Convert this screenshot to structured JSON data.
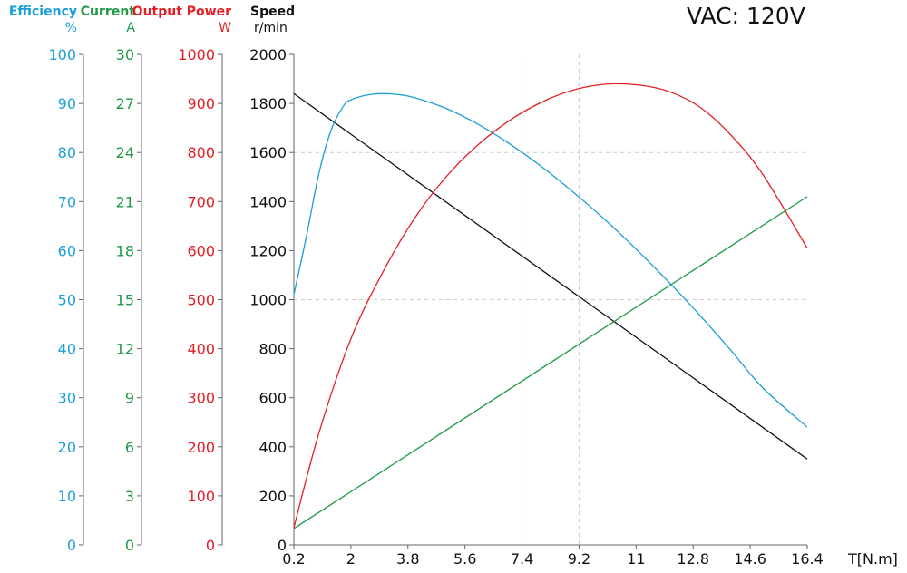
{
  "title": "VAC: 120V",
  "chart_data": {
    "type": "line",
    "title": "VAC: 120V",
    "xlabel": "T[N.m]",
    "xlim": [
      0.2,
      16.4
    ],
    "xticks": [
      "0.2",
      "2",
      "3.8",
      "5.6",
      "7.4",
      "9.2",
      "11",
      "12.8",
      "14.6",
      "16.4"
    ],
    "axes": [
      {
        "key": "eff",
        "label": "Efficiency",
        "unit": "%",
        "color": "#1a9ed8",
        "min": 0,
        "max": 100,
        "ticks": [
          "0",
          "10",
          "20",
          "30",
          "40",
          "50",
          "60",
          "70",
          "80",
          "90",
          "100"
        ]
      },
      {
        "key": "cur",
        "label": "Current",
        "unit": "A",
        "color": "#1d9a46",
        "min": 0,
        "max": 30,
        "ticks": [
          "0",
          "3",
          "6",
          "9",
          "12",
          "15",
          "18",
          "21",
          "24",
          "27",
          "30"
        ]
      },
      {
        "key": "pow",
        "label": "Output Power",
        "unit": "W",
        "color": "#e31e24",
        "min": 0,
        "max": 1000,
        "ticks": [
          "0",
          "100",
          "200",
          "300",
          "400",
          "500",
          "600",
          "700",
          "800",
          "900",
          "1000"
        ]
      },
      {
        "key": "spd",
        "label": "Speed",
        "unit": "r/min",
        "color": "#111111",
        "min": 0,
        "max": 2000,
        "ticks": [
          "0",
          "200",
          "400",
          "600",
          "800",
          "1000",
          "1200",
          "1400",
          "1600",
          "1800",
          "2000"
        ]
      }
    ],
    "grid": {
      "x": [
        7.4,
        9.2
      ],
      "y": [
        1000,
        1600
      ]
    },
    "series": [
      {
        "key": "spd",
        "color": "#111111",
        "x": [
          0.2,
          16.4
        ],
        "y": [
          1840,
          350
        ]
      },
      {
        "key": "cur",
        "color": "#1d9a46",
        "x": [
          0.2,
          16.4
        ],
        "y": [
          1.0,
          21.3
        ]
      },
      {
        "key": "eff",
        "color": "#1a9ed8",
        "x": [
          0.2,
          0.6,
          1.0,
          1.4,
          1.8,
          2.0,
          2.3,
          2.6,
          3.0,
          3.5,
          4.0,
          5.0,
          6.0,
          7.0,
          8.0,
          9.0,
          10.0,
          11.0,
          12.0,
          13.0,
          14.0,
          15.0,
          16.4
        ],
        "y": [
          51,
          63,
          76,
          85,
          89.8,
          90.7,
          91.4,
          91.8,
          92.0,
          91.8,
          91.2,
          89.0,
          85.8,
          81.8,
          77.2,
          72.0,
          66.4,
          60.3,
          53.8,
          46.9,
          39.6,
          32.0,
          24.0
        ]
      },
      {
        "key": "pow",
        "color": "#e31e24",
        "x": [
          0.2,
          1.0,
          2.0,
          3.0,
          4.0,
          5.0,
          6.0,
          7.0,
          8.0,
          9.0,
          10.0,
          11.0,
          12.0,
          13.0,
          14.0,
          15.0,
          16.4
        ],
        "y": [
          35,
          230,
          420,
          555,
          665,
          750,
          815,
          865,
          902,
          927,
          939,
          938,
          925,
          893,
          835,
          755,
          605
        ]
      }
    ]
  }
}
